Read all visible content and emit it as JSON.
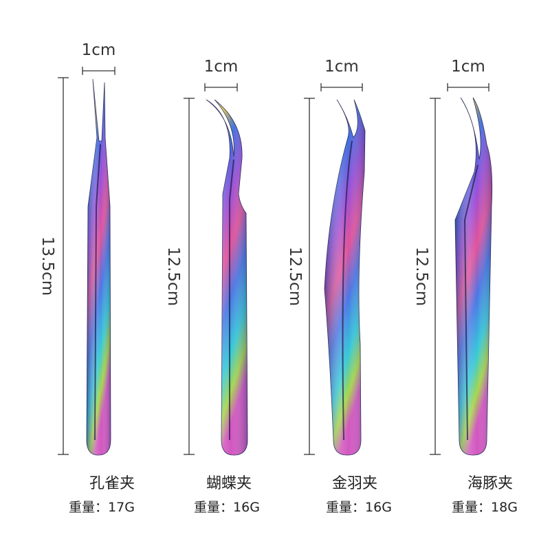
{
  "items": [
    {
      "width": "1cm",
      "length": "13.5cm",
      "name": "孔雀夹",
      "weight": "重量：17G"
    },
    {
      "width": "1cm",
      "length": "12.5cm",
      "name": "蝴蝶夹",
      "weight": "重量：16G"
    },
    {
      "width": "1cm",
      "length": "12.5cm",
      "name": "金羽夹",
      "weight": "重量：16G"
    },
    {
      "width": "1cm",
      "length": "12.5cm",
      "name": "海豚夹",
      "weight": "重量：18G"
    }
  ]
}
